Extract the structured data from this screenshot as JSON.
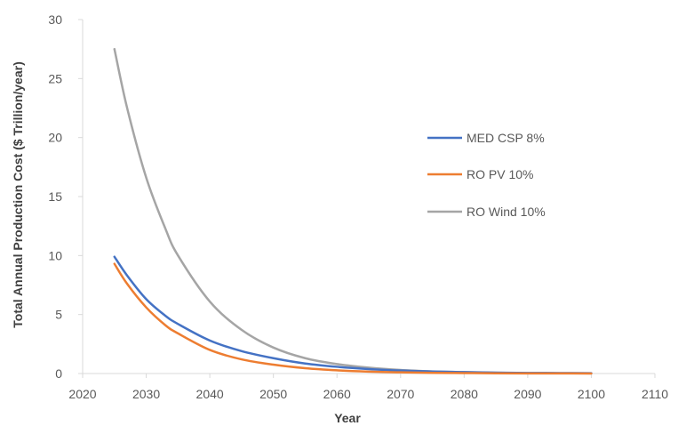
{
  "chart_data": {
    "type": "line",
    "title": "",
    "xlabel": "Year",
    "ylabel": "Total Annual Production Cost ($ Trillion/year)",
    "xlim": [
      2020,
      2110
    ],
    "ylim": [
      0,
      30
    ],
    "xticks": [
      "2020",
      "2030",
      "2040",
      "2050",
      "2060",
      "2070",
      "2080",
      "2090",
      "2100",
      "2110"
    ],
    "yticks": [
      "0",
      "5",
      "10",
      "15",
      "20",
      "25",
      "30"
    ],
    "grid": false,
    "legend_position": "right",
    "x": [
      2025,
      2027,
      2030,
      2033,
      2035,
      2040,
      2045,
      2050,
      2055,
      2060,
      2065,
      2070,
      2075,
      2080,
      2085,
      2090,
      2095,
      2100
    ],
    "series": [
      {
        "name": "MED CSP 8%",
        "color": "#4472C4",
        "values": [
          9.9,
          8.3,
          6.3,
          4.9,
          4.2,
          2.8,
          1.9,
          1.3,
          0.85,
          0.57,
          0.38,
          0.25,
          0.17,
          0.12,
          0.08,
          0.05,
          0.04,
          0.03
        ]
      },
      {
        "name": "RO PV 10%",
        "color": "#ED7D31",
        "values": [
          9.3,
          7.6,
          5.6,
          4.1,
          3.4,
          2.0,
          1.2,
          0.75,
          0.45,
          0.27,
          0.16,
          0.1,
          0.06,
          0.04,
          0.02,
          0.01,
          0.01,
          0.0
        ]
      },
      {
        "name": "RO Wind 10%",
        "color": "#A5A5A5",
        "values": [
          27.5,
          22.5,
          16.6,
          12.3,
          10.0,
          6.1,
          3.7,
          2.2,
          1.3,
          0.8,
          0.5,
          0.3,
          0.18,
          0.11,
          0.07,
          0.04,
          0.03,
          0.02
        ]
      }
    ]
  }
}
